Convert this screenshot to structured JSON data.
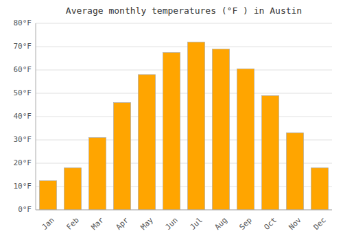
{
  "chart_data": {
    "type": "bar",
    "title": "Average monthly temperatures (°F ) in Austin",
    "categories": [
      "Jan",
      "Feb",
      "Mar",
      "Apr",
      "May",
      "Jun",
      "Jul",
      "Aug",
      "Sep",
      "Oct",
      "Nov",
      "Dec"
    ],
    "values": [
      12.5,
      18.0,
      31.0,
      46.0,
      58.0,
      67.5,
      72.0,
      69.0,
      60.5,
      49.0,
      33.0,
      18.0
    ],
    "color": "#FFA500",
    "ylim": [
      0,
      80
    ],
    "yticks": [
      {
        "value": 0,
        "label": "0°F"
      },
      {
        "value": 10,
        "label": "10°F"
      },
      {
        "value": 20,
        "label": "20°F"
      },
      {
        "value": 30,
        "label": "30°F"
      },
      {
        "value": 40,
        "label": "40°F"
      },
      {
        "value": 50,
        "label": "50°F"
      },
      {
        "value": 60,
        "label": "60°F"
      },
      {
        "value": 70,
        "label": "70°F"
      },
      {
        "value": 80,
        "label": "80°F"
      }
    ],
    "grid": true
  }
}
